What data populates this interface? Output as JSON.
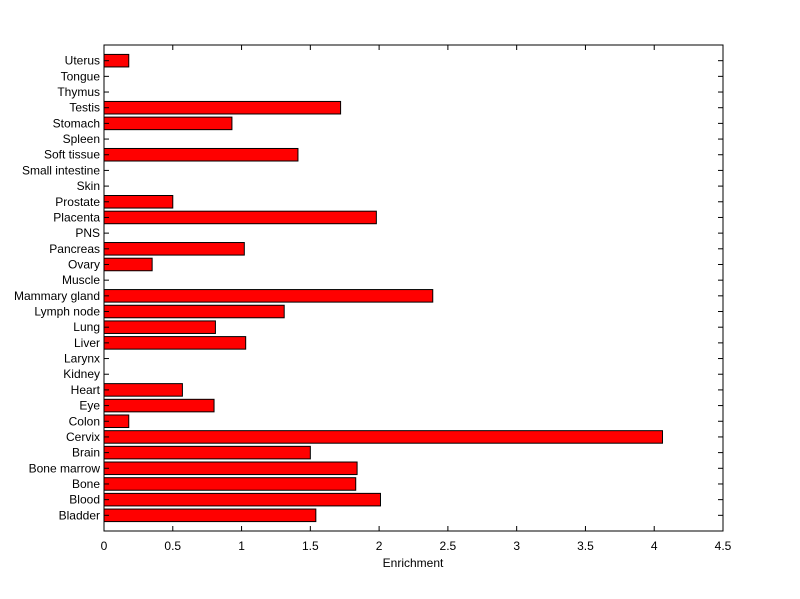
{
  "chart_data": {
    "type": "bar",
    "orientation": "horizontal",
    "categories": [
      "Uterus",
      "Tongue",
      "Thymus",
      "Testis",
      "Stomach",
      "Spleen",
      "Soft tissue",
      "Small intestine",
      "Skin",
      "Prostate",
      "Placenta",
      "PNS",
      "Pancreas",
      "Ovary",
      "Muscle",
      "Mammary gland",
      "Lymph node",
      "Lung",
      "Liver",
      "Larynx",
      "Kidney",
      "Heart",
      "Eye",
      "Colon",
      "Cervix",
      "Brain",
      "Bone marrow",
      "Bone",
      "Blood",
      "Bladder"
    ],
    "values": [
      0.18,
      0,
      0,
      1.72,
      0.93,
      0,
      1.41,
      0,
      0,
      0.5,
      1.98,
      0,
      1.02,
      0.35,
      0,
      2.39,
      1.31,
      0.81,
      1.03,
      0,
      0,
      0.57,
      0.8,
      0.18,
      4.06,
      1.5,
      1.84,
      1.83,
      2.01,
      1.54
    ],
    "xlabel": "Enrichment",
    "ylabel": "",
    "title": "",
    "xlim": [
      0,
      4.5
    ],
    "xticks": [
      0,
      0.5,
      1,
      1.5,
      2,
      2.5,
      3,
      3.5,
      4,
      4.5
    ],
    "xtick_labels": [
      "0",
      "0.5",
      "1",
      "1.5",
      "2",
      "2.5",
      "3",
      "3.5",
      "4",
      "4.5"
    ],
    "grid": false,
    "bar_color": "#ff0000",
    "edge_color": "#000000"
  }
}
